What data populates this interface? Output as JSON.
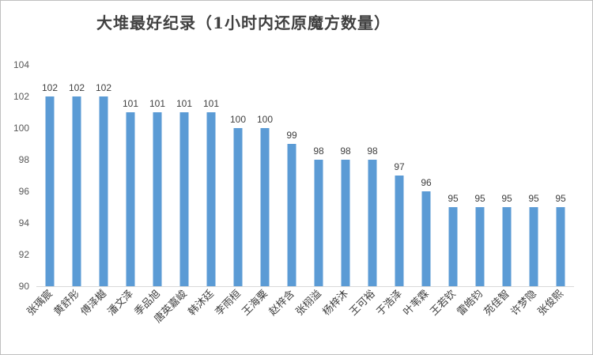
{
  "chart_data": {
    "type": "bar",
    "title": "大堆最好纪录（1小时内还原魔方数量）",
    "xlabel": "",
    "ylabel": "",
    "categories": [
      "张瑀宸",
      "黄舒彤",
      "傅泽樾",
      "潘文泽",
      "季品旭",
      "唐英嘉峻",
      "韩沐廷",
      "李雨桓",
      "王海粟",
      "赵梓含",
      "张栩溢",
      "杨梓沐",
      "王可裕",
      "于浩泽",
      "叶苇霖",
      "王若钦",
      "雷皓钧",
      "苑佳智",
      "许梦隐",
      "张俊熙"
    ],
    "values": [
      102,
      102,
      102,
      101,
      101,
      101,
      101,
      100,
      100,
      99,
      98,
      98,
      98,
      97,
      96,
      95,
      95,
      95,
      95,
      95
    ],
    "ylim": [
      90,
      104
    ],
    "yticks": [
      90,
      92,
      94,
      96,
      98,
      100,
      102,
      104
    ],
    "grid": false,
    "legend": "none",
    "bar_color": "#5b9bd5",
    "data_labels": true
  }
}
